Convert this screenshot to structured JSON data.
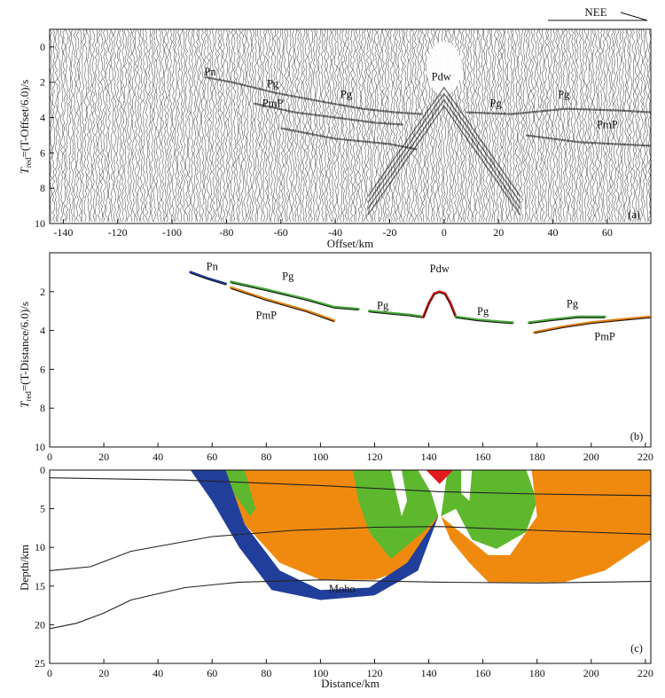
{
  "header": {
    "direction_label": "NEE"
  },
  "chart_data": [
    {
      "panel": "(a)",
      "type": "line",
      "title": "",
      "xlabel": "Offset/km",
      "ylabel": "T_red=(T-Offset/6.0)/s",
      "ylabel_main": "T",
      "ylabel_sub": "red",
      "ylabel_rest": "=(T-Offset/6.0)/s",
      "xlim": [
        -145,
        76
      ],
      "ylim": [
        10,
        -1
      ],
      "xticks": [
        -140,
        -120,
        -100,
        -80,
        -60,
        -40,
        -20,
        0,
        20,
        40,
        60
      ],
      "yticks": [
        0,
        2,
        4,
        6,
        8,
        10
      ],
      "phase_labels": [
        {
          "text": "Pn",
          "x": -86,
          "y": 1.6
        },
        {
          "text": "Pg",
          "x": -63,
          "y": 2.3
        },
        {
          "text": "PmP",
          "x": -63,
          "y": 3.4
        },
        {
          "text": "Pg",
          "x": -36,
          "y": 2.9
        },
        {
          "text": "Pdw",
          "x": -1,
          "y": 1.9
        },
        {
          "text": "Pg",
          "x": 19,
          "y": 3.4
        },
        {
          "text": "Pg",
          "x": 44,
          "y": 2.9
        },
        {
          "text": "PmP",
          "x": 60,
          "y": 4.6
        }
      ]
    },
    {
      "panel": "(b)",
      "type": "line",
      "title": "",
      "xlabel": "",
      "ylabel": "T_red=(T-Distance/6.0)/s",
      "ylabel_main": "T",
      "ylabel_sub": "red",
      "ylabel_rest": "=(T-Distance/6.0)/s",
      "xlim": [
        0,
        222
      ],
      "ylim": [
        10,
        0
      ],
      "xticks": [
        0,
        20,
        40,
        60,
        80,
        100,
        120,
        140,
        160,
        180,
        200,
        220
      ],
      "yticks": [
        2,
        4,
        6,
        8,
        10
      ],
      "series": [
        {
          "name": "Pn",
          "color": "#1f3f9a",
          "x": [
            52,
            58,
            65
          ],
          "y": [
            1.0,
            1.3,
            1.6
          ]
        },
        {
          "name": "Pg",
          "color": "#4aaa3c",
          "x": [
            67,
            80,
            95,
            105,
            114
          ],
          "y": [
            1.5,
            1.9,
            2.4,
            2.8,
            2.9
          ]
        },
        {
          "name": "PmP",
          "color": "#e07f12",
          "x": [
            67,
            80,
            95,
            105
          ],
          "y": [
            1.8,
            2.4,
            3.0,
            3.5
          ]
        },
        {
          "name": "Pg",
          "color": "#4aaa3c",
          "x": [
            118,
            125,
            133,
            138
          ],
          "y": [
            3.0,
            3.1,
            3.2,
            3.3
          ]
        },
        {
          "name": "Pdw",
          "color": "#e02020",
          "x": [
            138,
            140,
            142,
            144,
            146,
            148,
            150
          ],
          "y": [
            3.3,
            2.6,
            2.1,
            2.0,
            2.1,
            2.6,
            3.3
          ]
        },
        {
          "name": "Pg",
          "color": "#4aaa3c",
          "x": [
            150,
            158,
            166,
            171
          ],
          "y": [
            3.3,
            3.45,
            3.55,
            3.6
          ]
        },
        {
          "name": "Pg",
          "color": "#4aaa3c",
          "x": [
            177,
            185,
            195,
            205
          ],
          "y": [
            3.6,
            3.45,
            3.3,
            3.3
          ]
        },
        {
          "name": "PmP",
          "color": "#e07f12",
          "x": [
            179,
            190,
            200,
            210,
            222
          ],
          "y": [
            4.1,
            3.8,
            3.6,
            3.45,
            3.3
          ]
        }
      ],
      "phase_labels": [
        {
          "text": "Pn",
          "x": 60,
          "y": 0.9
        },
        {
          "text": "Pg",
          "x": 88,
          "y": 1.4
        },
        {
          "text": "PmP",
          "x": 80,
          "y": 3.4
        },
        {
          "text": "Pdw",
          "x": 144,
          "y": 1.0
        },
        {
          "text": "Pg",
          "x": 123,
          "y": 2.9
        },
        {
          "text": "Pg",
          "x": 160,
          "y": 3.2
        },
        {
          "text": "Pg",
          "x": 193,
          "y": 2.8
        },
        {
          "text": "PmP",
          "x": 205,
          "y": 4.5
        }
      ]
    },
    {
      "panel": "(c)",
      "type": "area",
      "title": "",
      "xlabel": "Distance/km",
      "ylabel": "Depth/km",
      "xlim": [
        0,
        222
      ],
      "ylim": [
        25,
        0
      ],
      "xticks": [
        0,
        20,
        40,
        60,
        80,
        100,
        120,
        140,
        160,
        180,
        200,
        220
      ],
      "yticks": [
        0,
        5,
        10,
        15,
        20,
        25
      ],
      "source_x": 144,
      "source_color": "#e31a1c",
      "ray_colors": {
        "Pn": "#213f9a",
        "Pg": "#5db82e",
        "PmP": "#f08a0e"
      },
      "boundaries": [
        {
          "x": [
            0,
            50,
            100,
            144,
            180,
            222
          ],
          "y": [
            1.0,
            1.3,
            2.0,
            2.8,
            3.1,
            3.3
          ]
        },
        {
          "x": [
            0,
            15,
            30,
            60,
            90,
            120,
            144,
            180,
            222
          ],
          "y": [
            13.0,
            12.5,
            10.5,
            8.6,
            7.8,
            7.4,
            7.3,
            7.8,
            8.3
          ]
        },
        {
          "x": [
            0,
            10,
            20,
            30,
            50,
            70,
            100,
            144,
            180,
            222
          ],
          "y": [
            20.5,
            19.8,
            18.5,
            16.8,
            15.2,
            14.5,
            14.2,
            14.5,
            14.6,
            14.4
          ]
        }
      ],
      "moho_label": {
        "text": "Moho",
        "x": 108,
        "y": 15.8
      }
    }
  ],
  "panel_labels": [
    "(a)",
    "(b)",
    "(c)"
  ]
}
